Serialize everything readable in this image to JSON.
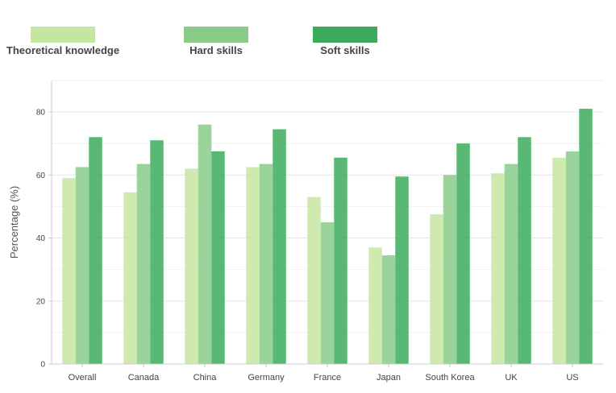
{
  "chart_data": {
    "type": "bar",
    "title": "",
    "xlabel": "",
    "ylabel": "Percentage (%)",
    "ylim": [
      0,
      90
    ],
    "yticks": [
      0,
      20,
      40,
      60,
      80
    ],
    "grid": true,
    "legend_position": "top",
    "categories": [
      "Overall",
      "Canada",
      "China",
      "Germany",
      "France",
      "Japan",
      "South Korea",
      "UK",
      "US"
    ],
    "series": [
      {
        "name": "Theoretical knowledge",
        "color": "#c5e6a1",
        "values": [
          59,
          54.5,
          62,
          62.5,
          53,
          37,
          47.5,
          60.5,
          65.5
        ]
      },
      {
        "name": "Hard skills",
        "color": "#88cc88",
        "values": [
          62.5,
          63.5,
          76,
          63.5,
          45,
          34.5,
          60,
          63.5,
          67.5
        ]
      },
      {
        "name": "Soft skills",
        "color": "#3cab5c",
        "values": [
          72,
          71,
          67.5,
          74.5,
          65.5,
          59.5,
          70,
          72,
          81
        ]
      }
    ]
  }
}
